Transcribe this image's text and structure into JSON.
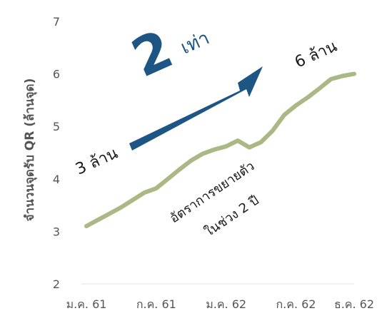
{
  "chart_data": {
    "type": "line",
    "ylabel": "จำนวนจุดรับ QR (ล้านจุด)",
    "ylim": [
      2,
      7
    ],
    "yticks": [
      "2",
      "3",
      "4",
      "5",
      "6",
      "7"
    ],
    "xtick_labels": [
      "ม.ค. 61",
      "ก.ค. 61",
      "ม.ค. 62",
      "ก.ค. 62",
      "ธ.ค. 62"
    ],
    "x": [
      "ม.ค. 61",
      "ก.พ. 61",
      "มี.ค. 61",
      "เม.ย. 61",
      "พ.ค. 61",
      "มิ.ย. 61",
      "ก.ค. 61",
      "ส.ค. 61",
      "ก.ย. 61",
      "ต.ค. 61",
      "พ.ย. 61",
      "ธ.ค. 61",
      "ม.ค. 62",
      "ก.พ. 62",
      "มี.ค. 62",
      "เม.ย. 62",
      "พ.ค. 62",
      "มิ.ย. 62",
      "ก.ค. 62",
      "ส.ค. 62",
      "ก.ย. 62",
      "ต.ค. 62",
      "พ.ย. 62",
      "ธ.ค. 62"
    ],
    "series": [
      {
        "color": "#a9b884",
        "values": [
          3.1,
          3.22,
          3.34,
          3.46,
          3.6,
          3.74,
          3.82,
          4.0,
          4.18,
          4.35,
          4.48,
          4.56,
          4.62,
          4.73,
          4.6,
          4.7,
          4.92,
          5.22,
          5.4,
          5.55,
          5.72,
          5.9,
          5.96,
          6.0
        ]
      }
    ],
    "grid": false,
    "annotations": {
      "start_label": "3 ล้าน",
      "end_label": "6 ล้าน",
      "multiplier_number": "2",
      "multiplier_word": "เท่า",
      "growth_line1": "อัตราการขยายตัว",
      "growth_line2": "ในช่วง 2 ปี"
    },
    "arrow_color": "#1d5585"
  }
}
